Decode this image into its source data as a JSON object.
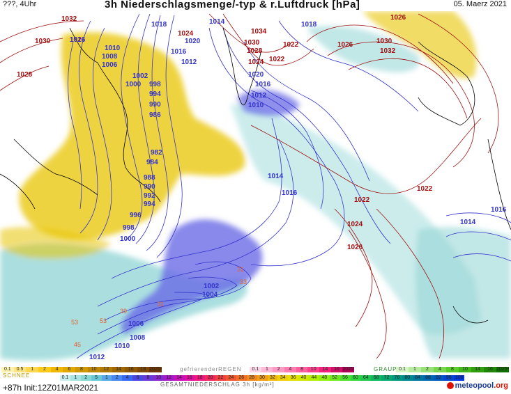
{
  "header": {
    "left_label": "???, 4Uhr",
    "title": "3h Niederschlagsmenge/-typ & r.Luftdruck [hPa]",
    "date": "05. Maerz 2021"
  },
  "footer": {
    "run_info": "+87h  Init:12Z01MAR2021",
    "logo_text": "meteopool",
    "logo_suffix": ".org"
  },
  "colors": {
    "low_isobar": "#3333cc",
    "high_isobar": "#a01010",
    "snow": "#e8c400",
    "rain": "#8fd4d4",
    "heavy_rain": "#5a5ae0",
    "coast": "#000000"
  },
  "isobar_labels": [
    {
      "text": "1032",
      "tone": "high"
    },
    {
      "text": "1030",
      "tone": "high"
    },
    {
      "text": "1028",
      "tone": "high"
    },
    {
      "text": "1018",
      "tone": "low"
    },
    {
      "text": "1016",
      "tone": "low"
    },
    {
      "text": "1024",
      "tone": "high"
    },
    {
      "text": "1020",
      "tone": "low"
    },
    {
      "text": "1014",
      "tone": "low"
    },
    {
      "text": "1034",
      "tone": "high"
    },
    {
      "text": "1018",
      "tone": "low"
    },
    {
      "text": "1030",
      "tone": "high"
    },
    {
      "text": "1022",
      "tone": "high"
    },
    {
      "text": "1028",
      "tone": "high"
    },
    {
      "text": "1026",
      "tone": "high"
    },
    {
      "text": "1024",
      "tone": "high"
    },
    {
      "text": "1022",
      "tone": "high"
    },
    {
      "text": "1020",
      "tone": "low"
    },
    {
      "text": "1016",
      "tone": "low"
    },
    {
      "text": "1012",
      "tone": "low"
    },
    {
      "text": "1010",
      "tone": "low"
    },
    {
      "text": "1026",
      "tone": "high"
    },
    {
      "text": "1030",
      "tone": "high"
    },
    {
      "text": "1032",
      "tone": "high"
    },
    {
      "text": "1026",
      "tone": "high"
    },
    {
      "text": "1010",
      "tone": "low"
    },
    {
      "text": "1008",
      "tone": "low"
    },
    {
      "text": "1006",
      "tone": "low"
    },
    {
      "text": "1016",
      "tone": "low"
    },
    {
      "text": "1012",
      "tone": "low"
    },
    {
      "text": "1002",
      "tone": "low"
    },
    {
      "text": "1000",
      "tone": "low"
    },
    {
      "text": "998",
      "tone": "low"
    },
    {
      "text": "994",
      "tone": "low"
    },
    {
      "text": "990",
      "tone": "low"
    },
    {
      "text": "986",
      "tone": "low"
    },
    {
      "text": "982",
      "tone": "low"
    },
    {
      "text": "984",
      "tone": "low"
    },
    {
      "text": "988",
      "tone": "low"
    },
    {
      "text": "990",
      "tone": "low"
    },
    {
      "text": "992",
      "tone": "low"
    },
    {
      "text": "994",
      "tone": "low"
    },
    {
      "text": "996",
      "tone": "low"
    },
    {
      "text": "998",
      "tone": "low"
    },
    {
      "text": "1000",
      "tone": "low"
    },
    {
      "text": "1014",
      "tone": "low"
    },
    {
      "text": "1016",
      "tone": "low"
    },
    {
      "text": "1022",
      "tone": "high"
    },
    {
      "text": "1024",
      "tone": "high"
    },
    {
      "text": "1026",
      "tone": "high"
    },
    {
      "text": "1022",
      "tone": "high"
    },
    {
      "text": "1016",
      "tone": "low"
    },
    {
      "text": "1014",
      "tone": "low"
    },
    {
      "text": "1002",
      "tone": "low"
    },
    {
      "text": "1004",
      "tone": "low"
    },
    {
      "text": "1006",
      "tone": "low"
    },
    {
      "text": "1008",
      "tone": "low"
    },
    {
      "text": "1010",
      "tone": "low"
    },
    {
      "text": "1012",
      "tone": "low"
    }
  ],
  "precip_labels": [
    {
      "text": "31"
    },
    {
      "text": "53"
    },
    {
      "text": "53"
    },
    {
      "text": "39"
    },
    {
      "text": "31"
    },
    {
      "text": "45"
    },
    {
      "text": "33"
    }
  ],
  "legend": {
    "snow": {
      "title": "SCHNEE",
      "values": [
        "0.1",
        "0.5",
        "1",
        "2",
        "4",
        "6",
        "8",
        "10",
        "12",
        "14",
        "16",
        "18",
        "2025+"
      ]
    },
    "freezing": {
      "title": "gefrierenderREGEN",
      "values": [
        "0.1",
        "1",
        "2",
        "4",
        "8",
        "10",
        "14",
        "16",
        "2025+"
      ]
    },
    "graupel": {
      "title": "GRAUPEL",
      "values": [
        "0.1",
        "1",
        "2",
        "4",
        "8",
        "10",
        "14",
        "16",
        "2025+"
      ]
    },
    "total": {
      "title": "GESAMTNIEDERSCHLAG 3h [kg/m²]",
      "values": [
        "0.1",
        "1",
        "2",
        "5",
        "1",
        "2",
        "4",
        "6",
        "8",
        "10",
        "12",
        "14",
        "16",
        "18",
        "20",
        "22",
        "24",
        "26",
        "28",
        "30",
        "32",
        "34",
        "36",
        "40",
        "44",
        "48",
        "52",
        "56",
        "60",
        "64",
        "68",
        "72",
        "76",
        "80",
        "84",
        "88",
        "92",
        "96",
        "100"
      ]
    }
  }
}
